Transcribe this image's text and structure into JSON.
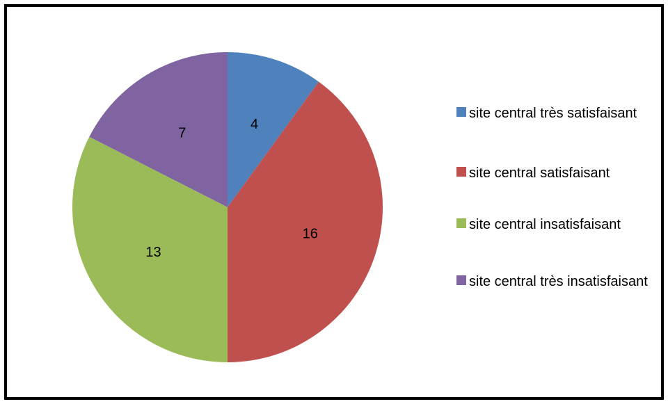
{
  "chart_data": {
    "type": "pie",
    "title": "",
    "slices": [
      {
        "label": "site central très satisfaisant",
        "value": 4,
        "color": "#4F81BD"
      },
      {
        "label": "site central satisfaisant",
        "value": 16,
        "color": "#C0504D"
      },
      {
        "label": "site central insatisfaisant",
        "value": 13,
        "color": "#9BBB59"
      },
      {
        "label": "site central très insatisfaisant",
        "value": 7,
        "color": "#8064A2"
      }
    ],
    "legend_position": "right",
    "show_data_labels": true
  }
}
